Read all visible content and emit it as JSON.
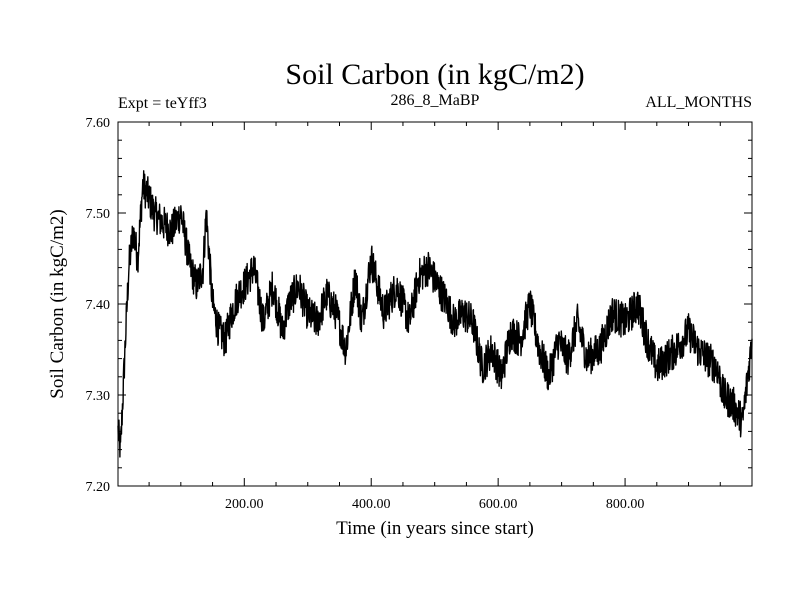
{
  "chart_data": {
    "type": "line",
    "title": "Soil Carbon (in kgC/m2)",
    "subtitle_left": "Expt = teYff3",
    "subtitle_center": "286_8_MaBP",
    "subtitle_right": "ALL_MONTHS",
    "xlabel": "Time (in years since start)",
    "ylabel": "Soil Carbon (in kgC/m2)",
    "xlim": [
      1,
      1000
    ],
    "ylim": [
      7.2,
      7.6
    ],
    "x_ticks": [
      200,
      400,
      600,
      800
    ],
    "x_tick_labels": [
      "200.00",
      "400.00",
      "600.00",
      "800.00"
    ],
    "y_ticks": [
      7.2,
      7.3,
      7.4,
      7.5,
      7.6
    ],
    "y_tick_labels": [
      "7.20",
      "7.30",
      "7.40",
      "7.50",
      "7.60"
    ],
    "series": [
      {
        "name": "Soil Carbon",
        "color": "#000000",
        "noise_amplitude": 0.02,
        "x": [
          1,
          5,
          12,
          18,
          25,
          32,
          40,
          48,
          58,
          70,
          85,
          100,
          115,
          125,
          135,
          140,
          150,
          160,
          170,
          180,
          190,
          200,
          215,
          230,
          245,
          260,
          270,
          285,
          300,
          315,
          330,
          345,
          360,
          375,
          385,
          400,
          420,
          440,
          460,
          475,
          490,
          505,
          520,
          530,
          545,
          560,
          575,
          590,
          605,
          620,
          635,
          650,
          665,
          680,
          695,
          710,
          725,
          740,
          760,
          780,
          800,
          820,
          835,
          850,
          865,
          880,
          900,
          915,
          930,
          945,
          955,
          970,
          985,
          1000
        ],
        "values": [
          7.26,
          7.24,
          7.35,
          7.44,
          7.48,
          7.45,
          7.53,
          7.52,
          7.5,
          7.49,
          7.48,
          7.5,
          7.44,
          7.42,
          7.44,
          7.5,
          7.4,
          7.37,
          7.36,
          7.39,
          7.41,
          7.42,
          7.44,
          7.38,
          7.42,
          7.37,
          7.4,
          7.42,
          7.39,
          7.38,
          7.41,
          7.39,
          7.35,
          7.43,
          7.38,
          7.45,
          7.39,
          7.42,
          7.38,
          7.43,
          7.44,
          7.42,
          7.4,
          7.38,
          7.39,
          7.38,
          7.33,
          7.35,
          7.32,
          7.37,
          7.36,
          7.4,
          7.35,
          7.32,
          7.36,
          7.34,
          7.38,
          7.34,
          7.35,
          7.39,
          7.38,
          7.4,
          7.36,
          7.33,
          7.34,
          7.35,
          7.37,
          7.35,
          7.34,
          7.33,
          7.3,
          7.29,
          7.27,
          7.36
        ]
      }
    ]
  }
}
